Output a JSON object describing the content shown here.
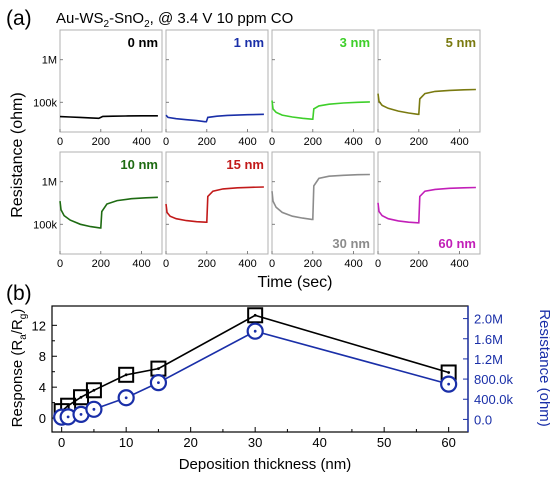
{
  "figure": {
    "panel_a_label": "(a)",
    "panel_b_label": "(b)",
    "header_pre": "Au-WS",
    "header_sub": "2",
    "header_mid": "-SnO",
    "header_sub2": "2",
    "header_post": ", @ 3.4 V 10 ppm CO"
  },
  "chart_data": [
    {
      "type": "line",
      "panel": "a",
      "xlabel": "Time (sec)",
      "ylabel": "Resistance (ohm)",
      "yscale": "log",
      "xlim": [
        0,
        500
      ],
      "ylim": [
        20000,
        5000000
      ],
      "x_ticks": [
        0,
        200,
        400
      ],
      "y_ticks": [
        {
          "value": 100000,
          "label": "100k"
        },
        {
          "value": 1000000,
          "label": "1M"
        }
      ],
      "grid": false,
      "subplots": [
        {
          "name": "0 nm",
          "color": "#000000",
          "x": [
            0,
            50,
            100,
            150,
            190,
            200,
            210,
            260,
            320,
            400,
            480
          ],
          "y": [
            46000,
            45000,
            44000,
            43000,
            42000,
            44000,
            46500,
            47000,
            47500,
            48000,
            48000
          ]
        },
        {
          "name": "1 nm",
          "color": "#1a2fa8",
          "x": [
            0,
            10,
            50,
            100,
            150,
            190,
            198,
            205,
            250,
            300,
            400,
            480
          ],
          "y": [
            50000,
            44000,
            41000,
            39000,
            37000,
            35000,
            35000,
            44000,
            47000,
            49000,
            51000,
            52000
          ]
        },
        {
          "name": "3 nm",
          "color": "#3ecf2a",
          "x": [
            0,
            5,
            20,
            50,
            100,
            150,
            195,
            200,
            205,
            230,
            280,
            350,
            420,
            480
          ],
          "y": [
            110000,
            70000,
            58000,
            50000,
            45000,
            42000,
            40000,
            40000,
            70000,
            82000,
            90000,
            96000,
            100000,
            102000
          ]
        },
        {
          "name": "5 nm",
          "color": "#7a7a10",
          "x": [
            0,
            5,
            20,
            50,
            100,
            150,
            195,
            200,
            205,
            230,
            280,
            350,
            420,
            480
          ],
          "y": [
            160000,
            105000,
            85000,
            72000,
            62000,
            56000,
            52000,
            52000,
            120000,
            160000,
            180000,
            190000,
            196000,
            200000
          ]
        },
        {
          "name": "10 nm",
          "color": "#1e6b12",
          "x": [
            0,
            5,
            20,
            50,
            100,
            150,
            195,
            200,
            205,
            230,
            280,
            350,
            420,
            480
          ],
          "y": [
            350000,
            220000,
            160000,
            125000,
            100000,
            88000,
            82000,
            82000,
            200000,
            300000,
            360000,
            400000,
            420000,
            430000
          ]
        },
        {
          "name": "15 nm",
          "color": "#c21a1a",
          "x": [
            0,
            5,
            20,
            50,
            100,
            150,
            195,
            200,
            205,
            230,
            280,
            350,
            420,
            480
          ],
          "y": [
            300000,
            190000,
            155000,
            135000,
            122000,
            115000,
            112000,
            112000,
            450000,
            600000,
            680000,
            720000,
            740000,
            750000
          ]
        },
        {
          "name": "30 nm",
          "color": "#8c8c8c",
          "x": [
            0,
            5,
            20,
            50,
            100,
            150,
            195,
            200,
            205,
            230,
            280,
            350,
            420,
            480
          ],
          "y": [
            600000,
            350000,
            250000,
            190000,
            155000,
            140000,
            130000,
            130000,
            800000,
            1200000,
            1350000,
            1420000,
            1460000,
            1480000
          ]
        },
        {
          "name": "60 nm",
          "color": "#c21fb8",
          "x": [
            0,
            5,
            20,
            50,
            100,
            150,
            195,
            200,
            205,
            230,
            280,
            350,
            420,
            480
          ],
          "y": [
            320000,
            200000,
            160000,
            135000,
            120000,
            112000,
            108000,
            108000,
            450000,
            600000,
            660000,
            700000,
            720000,
            730000
          ]
        }
      ]
    },
    {
      "type": "line",
      "panel": "b",
      "xlabel": "Deposition thickness (nm)",
      "ylabel_pre": "Response (R",
      "ylabel_sub1": "a",
      "ylabel_mid": "/R",
      "ylabel_sub2": "g",
      "ylabel_post": ")",
      "y2label": "Resistance (ohm)",
      "xlim": [
        -1.5,
        63
      ],
      "ylim": [
        -1.8,
        14.5
      ],
      "y2lim": [
        -250000,
        2250000
      ],
      "x_ticks": [
        0,
        5,
        10,
        15,
        20,
        25,
        30,
        35,
        40,
        45,
        50,
        55,
        60
      ],
      "y_ticks": [
        0,
        4,
        8,
        12
      ],
      "y_ticks_minor": [
        2,
        6,
        10
      ],
      "y2_ticks": [
        {
          "value": 0,
          "label": "0.0"
        },
        {
          "value": 400000,
          "label": "400.0k"
        },
        {
          "value": 800000,
          "label": "800.0k"
        },
        {
          "value": 1200000,
          "label": "1.2M"
        },
        {
          "value": 1600000,
          "label": "1.6M"
        },
        {
          "value": 2000000,
          "label": "2.0M"
        }
      ],
      "grid": false,
      "series": [
        {
          "axis": "left",
          "color": "#000000",
          "marker": "square",
          "x": [
            0,
            1,
            3,
            5,
            10,
            15,
            30,
            60
          ],
          "y": [
            0.9,
            1.6,
            2.7,
            3.6,
            5.6,
            6.4,
            13.3,
            5.9
          ]
        },
        {
          "axis": "right",
          "color": "#1a2fa8",
          "marker": "circle",
          "x": [
            0,
            1,
            3,
            5,
            10,
            15,
            30,
            60
          ],
          "y": [
            45000,
            50000,
            100000,
            200000,
            430000,
            730000,
            1750000,
            700000
          ]
        }
      ]
    }
  ]
}
